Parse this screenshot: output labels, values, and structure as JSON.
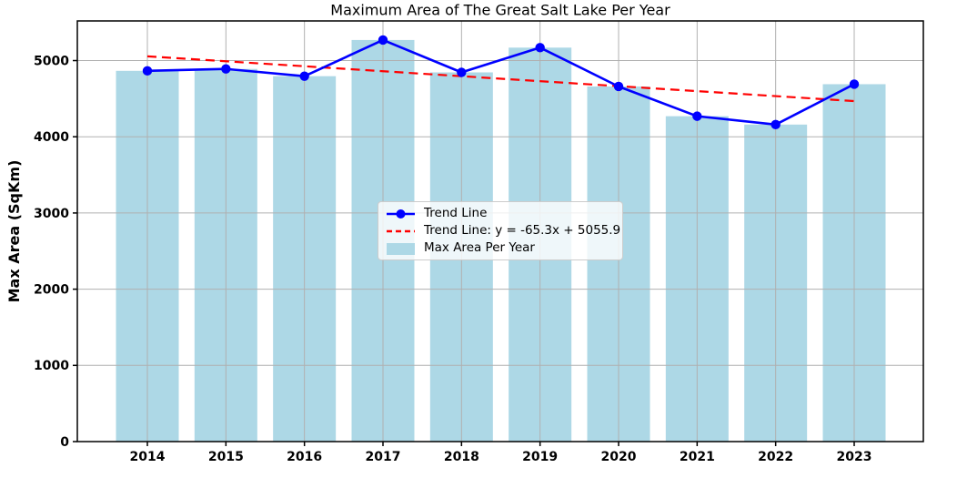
{
  "chart_data": {
    "type": "bar",
    "title": "Maximum Area of The Great Salt Lake Per Year",
    "xlabel": "",
    "ylabel": "Max Area (SqKm)",
    "categories": [
      "2014",
      "2015",
      "2016",
      "2017",
      "2018",
      "2019",
      "2020",
      "2021",
      "2022",
      "2023"
    ],
    "series": [
      {
        "name": "Max Area Per Year",
        "type": "bar",
        "color": "#ADD8E6",
        "values": [
          4865,
          4890,
          4795,
          5270,
          4845,
          5170,
          4660,
          4270,
          4160,
          4690
        ]
      },
      {
        "name": "Trend Line",
        "type": "line",
        "color": "#0000FF",
        "marker": "circle",
        "values": [
          4865,
          4890,
          4795,
          5270,
          4845,
          5170,
          4660,
          4270,
          4160,
          4690
        ]
      },
      {
        "name": "Trend Line: y = -65.3x + 5055.9",
        "type": "dashed-line",
        "color": "#FF0000",
        "slope": -65.3,
        "intercept": 5055.9
      }
    ],
    "yticks": [
      0,
      1000,
      2000,
      3000,
      4000,
      5000
    ],
    "ylim": [
      0,
      5520
    ],
    "grid": true,
    "grid_color": "#B0B0B0",
    "legend": {
      "position": "center",
      "entries": [
        "Trend Line",
        "Trend Line: y = -65.3x + 5055.9",
        "Max Area Per Year"
      ]
    }
  }
}
